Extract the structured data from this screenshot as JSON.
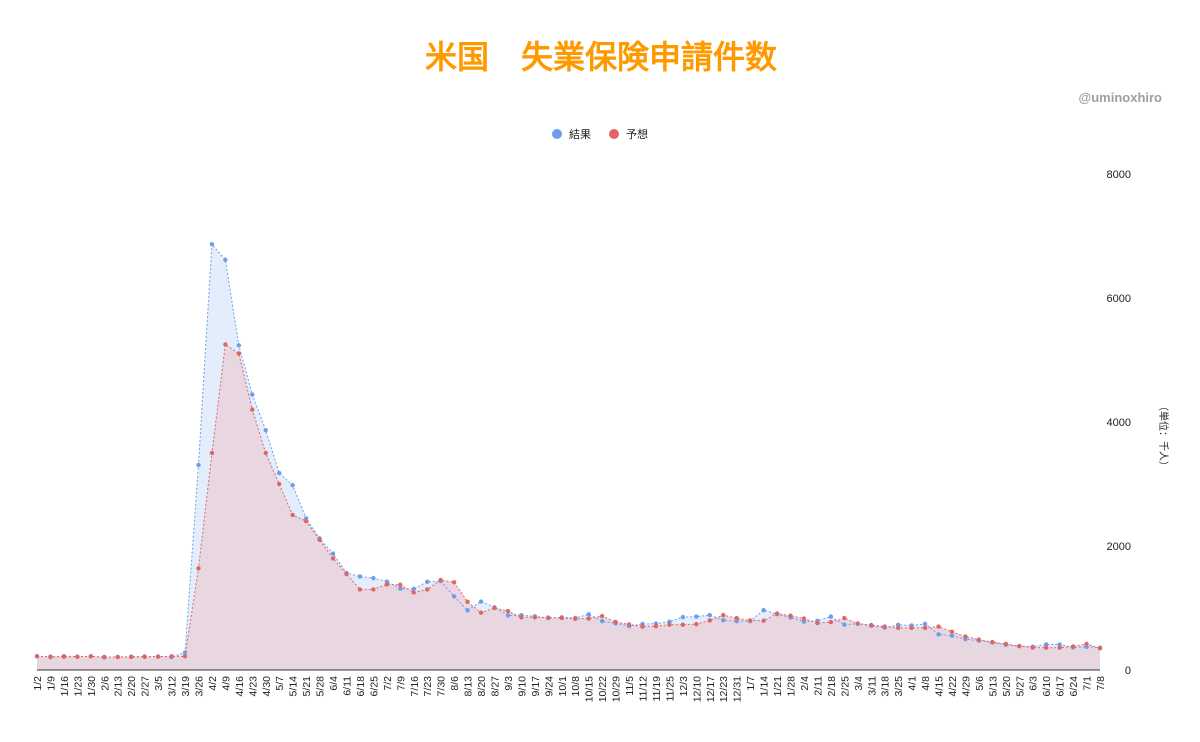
{
  "title": "米国　失業保険申請件数",
  "credit": "@uminoxhiro",
  "unit_label": "（単位：千人）",
  "colors": {
    "title": "#ff9900",
    "actual": "#6d9eeb",
    "forecast": "#e06666",
    "actual_fill": "#dbe7fb",
    "forecast_fill": "#e8d3de"
  },
  "chart_data": {
    "type": "area",
    "title": "米国　失業保険申請件数",
    "ylabel": "（単位：千人）",
    "ylim": [
      0,
      8000
    ],
    "yticks": [
      0,
      2000,
      4000,
      6000,
      8000
    ],
    "y_axis_position": "right",
    "legend_position": "top-center",
    "grid": false,
    "x_tick_labels": [
      "1/2",
      "1/9",
      "1/16",
      "1/23",
      "1/30",
      "2/6",
      "2/13",
      "2/20",
      "2/27",
      "3/5",
      "3/12",
      "3/19",
      "3/26",
      "4/2",
      "4/9",
      "4/16",
      "4/23",
      "4/30",
      "5/7",
      "5/14",
      "5/21",
      "5/28",
      "6/4",
      "6/11",
      "6/18",
      "6/25",
      "7/2",
      "7/9",
      "7/16",
      "7/23",
      "7/30",
      "8/6",
      "8/13",
      "8/20",
      "8/27",
      "9/3",
      "9/10",
      "9/17",
      "9/24",
      "10/1",
      "10/8",
      "10/15",
      "10/22",
      "10/29",
      "11/5",
      "11/12",
      "11/19",
      "11/25",
      "12/3",
      "12/10",
      "12/17",
      "12/23",
      "12/31",
      "1/7",
      "1/14",
      "1/21",
      "1/28",
      "2/4",
      "2/11",
      "2/18",
      "2/25",
      "3/4",
      "3/11",
      "3/18",
      "3/25",
      "4/1",
      "4/8",
      "4/15",
      "4/22",
      "4/29",
      "5/6",
      "5/13",
      "5/20",
      "5/27",
      "6/3",
      "6/10",
      "6/17",
      "6/24",
      "7/1",
      "7/8"
    ],
    "x": [
      "1/2",
      "1/9",
      "1/16",
      "1/23",
      "1/30",
      "2/6",
      "2/13",
      "2/20",
      "2/27",
      "3/5",
      "3/12",
      "3/19",
      "3/26",
      "4/2",
      "4/9",
      "4/16",
      "4/23",
      "4/30",
      "5/7",
      "5/14",
      "5/21",
      "5/28",
      "6/4",
      "6/11",
      "6/18",
      "6/25",
      "7/2",
      "7/9",
      "7/16",
      "7/23",
      "7/30",
      "8/6",
      "8/13",
      "8/20",
      "8/27",
      "9/3",
      "9/10",
      "9/17",
      "9/24",
      "10/1",
      "10/8",
      "10/15",
      "10/22",
      "10/29",
      "11/5",
      "11/12",
      "11/19",
      "11/25",
      "12/3",
      "12/10",
      "12/17",
      "12/23",
      "12/31",
      "1/7",
      "1/14",
      "1/21",
      "1/28",
      "2/4",
      "2/11",
      "2/18",
      "2/25",
      "3/4",
      "3/11",
      "3/18",
      "3/25",
      "4/1",
      "4/8",
      "4/15",
      "4/22",
      "4/29",
      "5/6",
      "5/13",
      "5/20",
      "5/27",
      "6/3",
      "6/10",
      "6/17",
      "6/24",
      "7/1",
      "7/8"
    ],
    "series": [
      {
        "name": "結果",
        "values": [
          222,
          207,
          223,
          216,
          220,
          203,
          211,
          216,
          219,
          216,
          211,
          282,
          3307,
          6867,
          6615,
          5237,
          4442,
          3867,
          3176,
          2981,
          2446,
          2123,
          1877,
          1566,
          1508,
          1482,
          1427,
          1314,
          1307,
          1422,
          1434,
          1186,
          963,
          1104,
          1011,
          881,
          884,
          866,
          837,
          849,
          840,
          898,
          787,
          751,
          709,
          742,
          748,
          778,
          853,
          862,
          885,
          803,
          787,
          787,
          965,
          900,
          847,
          779,
          793,
          861,
          730,
          745,
          712,
          684,
          728,
          719,
          744,
          576,
          553,
          498,
          473,
          444,
          406,
          385,
          376,
          412,
          411,
          364,
          373,
          360
        ]
      },
      {
        "name": "予想",
        "values": [
          220,
          215,
          215,
          213,
          220,
          210,
          210,
          210,
          212,
          216,
          220,
          220,
          1640,
          3500,
          5250,
          5105,
          4200,
          3500,
          3000,
          2500,
          2400,
          2100,
          1800,
          1550,
          1300,
          1300,
          1380,
          1375,
          1250,
          1300,
          1450,
          1415,
          1100,
          925,
          1000,
          950,
          850,
          850,
          845,
          840,
          825,
          830,
          870,
          775,
          735,
          700,
          707,
          730,
          730,
          740,
          800,
          885,
          835,
          800,
          795,
          910,
          875,
          830,
          757,
          773,
          838,
          750,
          725,
          700,
          680,
          680,
          680,
          700,
          617,
          540,
          490,
          450,
          420,
          385,
          362,
          359,
          360,
          380,
          420,
          350
        ]
      }
    ]
  }
}
